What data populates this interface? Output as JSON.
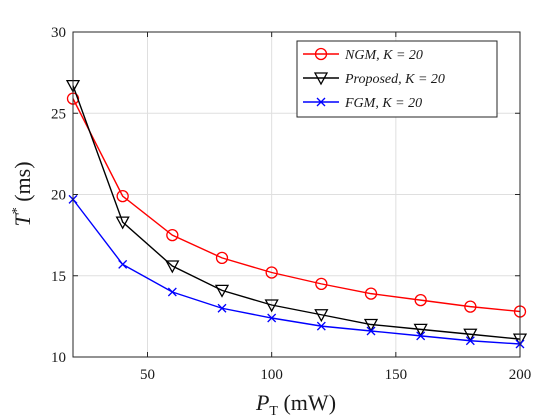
{
  "chart_data": {
    "type": "line",
    "xlabel": "P_T (mW)",
    "ylabel": "T* (ms)",
    "xlim": [
      20,
      200
    ],
    "ylim": [
      10,
      30
    ],
    "xticks": [
      50,
      100,
      150,
      200
    ],
    "yticks": [
      10,
      15,
      20,
      25,
      30
    ],
    "grid": true,
    "legend_position": "top-right",
    "x": [
      20,
      40,
      60,
      80,
      100,
      120,
      140,
      160,
      180,
      200
    ],
    "series": [
      {
        "name": "NGM,  K = 20",
        "color": "#ff0000",
        "marker": "circle",
        "values": [
          25.9,
          19.9,
          17.5,
          16.1,
          15.2,
          14.5,
          13.9,
          13.5,
          13.1,
          12.8
        ]
      },
      {
        "name": "Proposed,  K = 20",
        "color": "#000000",
        "marker": "triangle-down",
        "values": [
          26.7,
          18.3,
          15.6,
          14.1,
          13.2,
          12.6,
          12.0,
          11.7,
          11.4,
          11.1
        ]
      },
      {
        "name": "FGM,  K = 20",
        "color": "#0000ff",
        "marker": "x",
        "values": [
          19.7,
          15.7,
          14.0,
          13.0,
          12.4,
          11.9,
          11.6,
          11.3,
          11.0,
          10.8
        ]
      }
    ]
  }
}
